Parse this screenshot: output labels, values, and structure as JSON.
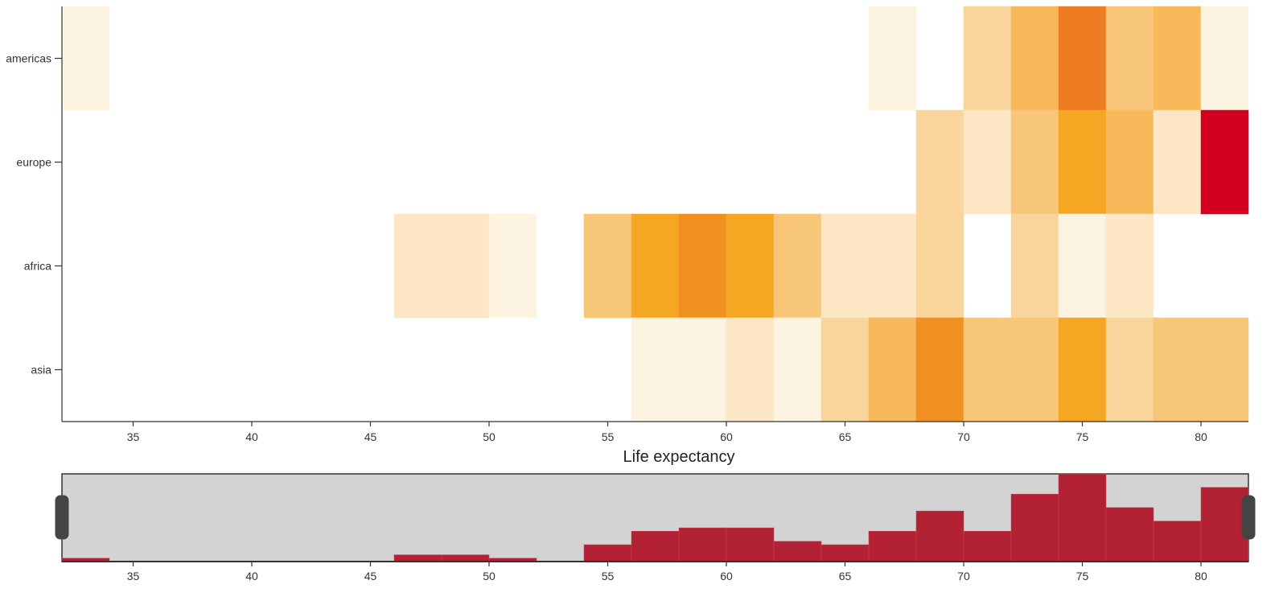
{
  "chart_data": [
    {
      "type": "heatmap",
      "xlabel": "Life expectancy",
      "ylabel": "",
      "title": "",
      "x_bin_width": 2,
      "xlim": [
        32,
        82
      ],
      "x_ticks": [
        35,
        40,
        45,
        50,
        55,
        60,
        65,
        70,
        75,
        80
      ],
      "rows": [
        "americas",
        "europe",
        "africa",
        "asia"
      ],
      "color_scale": [
        "#fdf3e1",
        "#fce6c4",
        "#f9d59c",
        "#f8c678",
        "#f8b95a",
        "#f5a623",
        "#f09020",
        "#ee7c22",
        "#d3001f"
      ],
      "cells": [
        {
          "row": "americas",
          "x": [
            32,
            34
          ],
          "value": 1
        },
        {
          "row": "americas",
          "x": [
            66,
            68
          ],
          "value": 1
        },
        {
          "row": "americas",
          "x": [
            70,
            72
          ],
          "value": 3
        },
        {
          "row": "americas",
          "x": [
            72,
            74
          ],
          "value": 5
        },
        {
          "row": "americas",
          "x": [
            74,
            76
          ],
          "value": 8
        },
        {
          "row": "americas",
          "x": [
            76,
            78
          ],
          "value": 4
        },
        {
          "row": "americas",
          "x": [
            78,
            80
          ],
          "value": 5
        },
        {
          "row": "americas",
          "x": [
            80,
            82
          ],
          "value": 1
        },
        {
          "row": "europe",
          "x": [
            68,
            70
          ],
          "value": 3
        },
        {
          "row": "europe",
          "x": [
            70,
            72
          ],
          "value": 2
        },
        {
          "row": "europe",
          "x": [
            72,
            74
          ],
          "value": 4
        },
        {
          "row": "europe",
          "x": [
            74,
            76
          ],
          "value": 6
        },
        {
          "row": "europe",
          "x": [
            76,
            78
          ],
          "value": 5
        },
        {
          "row": "europe",
          "x": [
            78,
            80
          ],
          "value": 2
        },
        {
          "row": "europe",
          "x": [
            80,
            82
          ],
          "value": 9
        },
        {
          "row": "africa",
          "x": [
            46,
            48
          ],
          "value": 2
        },
        {
          "row": "africa",
          "x": [
            48,
            50
          ],
          "value": 2
        },
        {
          "row": "africa",
          "x": [
            50,
            52
          ],
          "value": 1
        },
        {
          "row": "africa",
          "x": [
            54,
            56
          ],
          "value": 4
        },
        {
          "row": "africa",
          "x": [
            56,
            58
          ],
          "value": 6
        },
        {
          "row": "africa",
          "x": [
            58,
            60
          ],
          "value": 7
        },
        {
          "row": "africa",
          "x": [
            60,
            62
          ],
          "value": 6
        },
        {
          "row": "africa",
          "x": [
            62,
            64
          ],
          "value": 4
        },
        {
          "row": "africa",
          "x": [
            64,
            66
          ],
          "value": 2
        },
        {
          "row": "africa",
          "x": [
            66,
            68
          ],
          "value": 2
        },
        {
          "row": "africa",
          "x": [
            68,
            70
          ],
          "value": 3
        },
        {
          "row": "africa",
          "x": [
            72,
            74
          ],
          "value": 3
        },
        {
          "row": "africa",
          "x": [
            74,
            76
          ],
          "value": 1
        },
        {
          "row": "africa",
          "x": [
            76,
            78
          ],
          "value": 2
        },
        {
          "row": "asia",
          "x": [
            56,
            58
          ],
          "value": 1
        },
        {
          "row": "asia",
          "x": [
            58,
            60
          ],
          "value": 1
        },
        {
          "row": "asia",
          "x": [
            60,
            62
          ],
          "value": 2
        },
        {
          "row": "asia",
          "x": [
            62,
            64
          ],
          "value": 1
        },
        {
          "row": "asia",
          "x": [
            64,
            66
          ],
          "value": 3
        },
        {
          "row": "asia",
          "x": [
            66,
            68
          ],
          "value": 5
        },
        {
          "row": "asia",
          "x": [
            68,
            70
          ],
          "value": 7
        },
        {
          "row": "asia",
          "x": [
            70,
            72
          ],
          "value": 4
        },
        {
          "row": "asia",
          "x": [
            72,
            74
          ],
          "value": 4
        },
        {
          "row": "asia",
          "x": [
            74,
            76
          ],
          "value": 6
        },
        {
          "row": "asia",
          "x": [
            76,
            78
          ],
          "value": 3
        },
        {
          "row": "asia",
          "x": [
            78,
            80
          ],
          "value": 4
        },
        {
          "row": "asia",
          "x": [
            80,
            82
          ],
          "value": 4
        }
      ]
    },
    {
      "type": "bar",
      "role": "range-brush-histogram",
      "xlim": [
        32,
        82
      ],
      "x_ticks": [
        35,
        40,
        45,
        50,
        55,
        60,
        65,
        70,
        75,
        80
      ],
      "bar_color": "#b22234",
      "background_color": "#d3d3d3",
      "brush_range": [
        32,
        82
      ],
      "bins": [
        {
          "x": [
            32,
            34
          ],
          "value": 1
        },
        {
          "x": [
            34,
            36
          ],
          "value": 0
        },
        {
          "x": [
            36,
            38
          ],
          "value": 0
        },
        {
          "x": [
            38,
            40
          ],
          "value": 0
        },
        {
          "x": [
            40,
            42
          ],
          "value": 0
        },
        {
          "x": [
            42,
            44
          ],
          "value": 0
        },
        {
          "x": [
            44,
            46
          ],
          "value": 0
        },
        {
          "x": [
            46,
            48
          ],
          "value": 2
        },
        {
          "x": [
            48,
            50
          ],
          "value": 2
        },
        {
          "x": [
            50,
            52
          ],
          "value": 1
        },
        {
          "x": [
            52,
            54
          ],
          "value": 0
        },
        {
          "x": [
            54,
            56
          ],
          "value": 5
        },
        {
          "x": [
            56,
            58
          ],
          "value": 9
        },
        {
          "x": [
            58,
            60
          ],
          "value": 10
        },
        {
          "x": [
            60,
            62
          ],
          "value": 10
        },
        {
          "x": [
            62,
            64
          ],
          "value": 6
        },
        {
          "x": [
            64,
            66
          ],
          "value": 5
        },
        {
          "x": [
            66,
            68
          ],
          "value": 9
        },
        {
          "x": [
            68,
            70
          ],
          "value": 15
        },
        {
          "x": [
            70,
            72
          ],
          "value": 9
        },
        {
          "x": [
            72,
            74
          ],
          "value": 20
        },
        {
          "x": [
            74,
            76
          ],
          "value": 26
        },
        {
          "x": [
            76,
            78
          ],
          "value": 16
        },
        {
          "x": [
            78,
            80
          ],
          "value": 12
        },
        {
          "x": [
            80,
            82
          ],
          "value": 22
        }
      ],
      "ylim": [
        0,
        26
      ]
    }
  ]
}
